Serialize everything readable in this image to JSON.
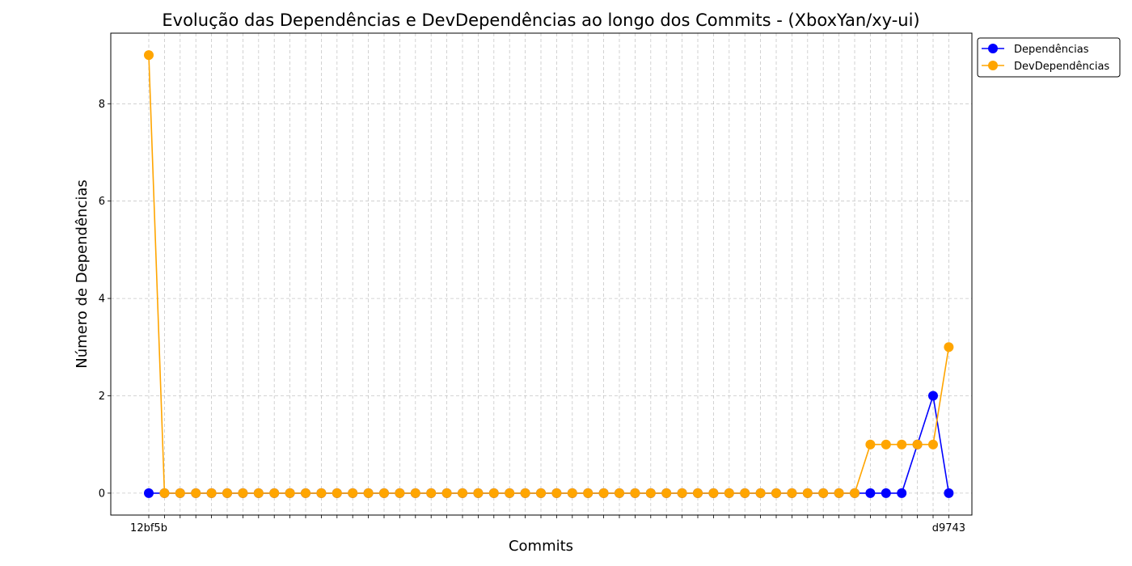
{
  "chart_data": {
    "type": "line",
    "title": "Evolução das Dependências e DevDependências ao longo dos Commits - (XboxYan/xy-ui)",
    "xlabel": "Commits",
    "ylabel": "Número de Dependências",
    "ylim": [
      -0.45,
      9.45
    ],
    "yticks": [
      0,
      2,
      4,
      6,
      8
    ],
    "grid": true,
    "legend": "outside-top-right",
    "x_count": 52,
    "x_tick_label_first": "12bf5b",
    "x_tick_label_last": "d9743",
    "series": [
      {
        "name": "Dependências",
        "color": "#0000ff",
        "values": [
          0,
          0,
          0,
          0,
          0,
          0,
          0,
          0,
          0,
          0,
          0,
          0,
          0,
          0,
          0,
          0,
          0,
          0,
          0,
          0,
          0,
          0,
          0,
          0,
          0,
          0,
          0,
          0,
          0,
          0,
          0,
          0,
          0,
          0,
          0,
          0,
          0,
          0,
          0,
          0,
          0,
          0,
          0,
          0,
          0,
          0,
          0,
          0,
          0,
          1,
          2,
          0
        ]
      },
      {
        "name": "DevDependências",
        "color": "#ffa500",
        "values": [
          9,
          0,
          0,
          0,
          0,
          0,
          0,
          0,
          0,
          0,
          0,
          0,
          0,
          0,
          0,
          0,
          0,
          0,
          0,
          0,
          0,
          0,
          0,
          0,
          0,
          0,
          0,
          0,
          0,
          0,
          0,
          0,
          0,
          0,
          0,
          0,
          0,
          0,
          0,
          0,
          0,
          0,
          0,
          0,
          0,
          0,
          1,
          1,
          1,
          1,
          1,
          3
        ]
      }
    ]
  }
}
